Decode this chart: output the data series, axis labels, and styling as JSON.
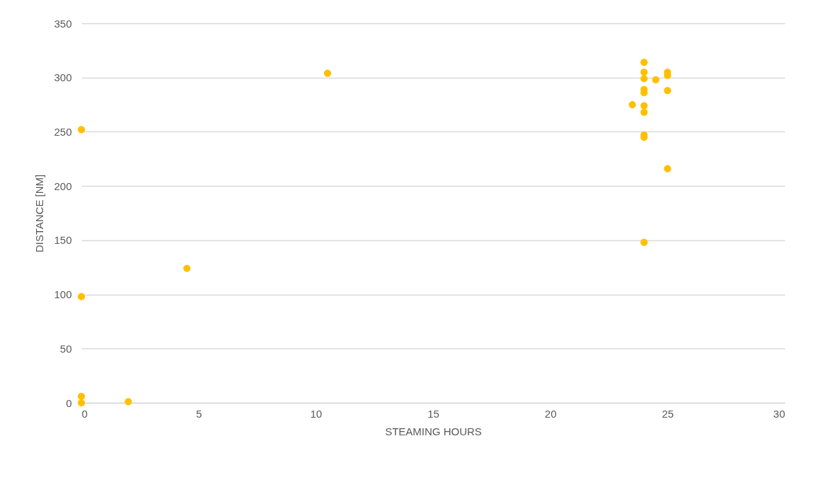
{
  "chart_data": {
    "type": "scatter",
    "xlabel": "STEAMING HOURS",
    "ylabel": "DISTANCE [NM]",
    "x": [
      0,
      0,
      0,
      0,
      2,
      4.5,
      10.5,
      24,
      24,
      24,
      24,
      24,
      24,
      24,
      24,
      24,
      24,
      23.5,
      24.5,
      25,
      25,
      25,
      25
    ],
    "series": [
      {
        "color": "#ffc000",
        "values": [
          252,
          98,
          6,
          0,
          1,
          124,
          304,
          314,
          305,
          299,
          289,
          286,
          274,
          268,
          247,
          245,
          148,
          275,
          298,
          305,
          302,
          288,
          216
        ]
      }
    ],
    "xlim": [
      0,
      30
    ],
    "xticks": [
      0,
      5,
      10,
      15,
      20,
      25,
      30
    ],
    "ylim": [
      0,
      350
    ],
    "yticks": [
      0,
      50,
      100,
      150,
      200,
      250,
      300,
      350
    ],
    "grid": "y",
    "marker": "circle",
    "legend": false
  }
}
